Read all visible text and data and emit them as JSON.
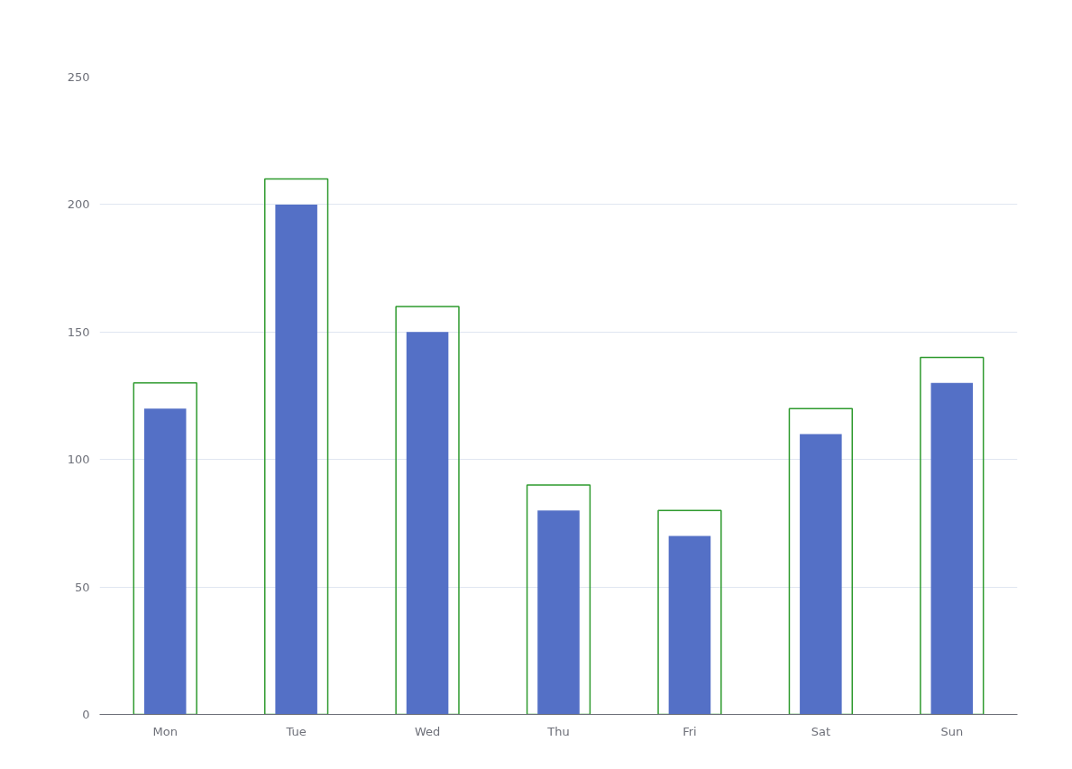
{
  "chart_data": {
    "type": "bar",
    "categories": [
      "Mon",
      "Tue",
      "Wed",
      "Thu",
      "Fri",
      "Sat",
      "Sun"
    ],
    "series": [
      {
        "color": "#2e9a2e",
        "values": [
          130,
          210,
          160,
          90,
          80,
          120,
          140
        ]
      },
      {
        "color": "#5470c6",
        "values": [
          120,
          200,
          150,
          80,
          70,
          110,
          130
        ]
      }
    ],
    "ylim": [
      0,
      250
    ],
    "yticks": [
      0,
      50,
      100,
      150,
      200,
      250
    ],
    "grid": "y"
  }
}
